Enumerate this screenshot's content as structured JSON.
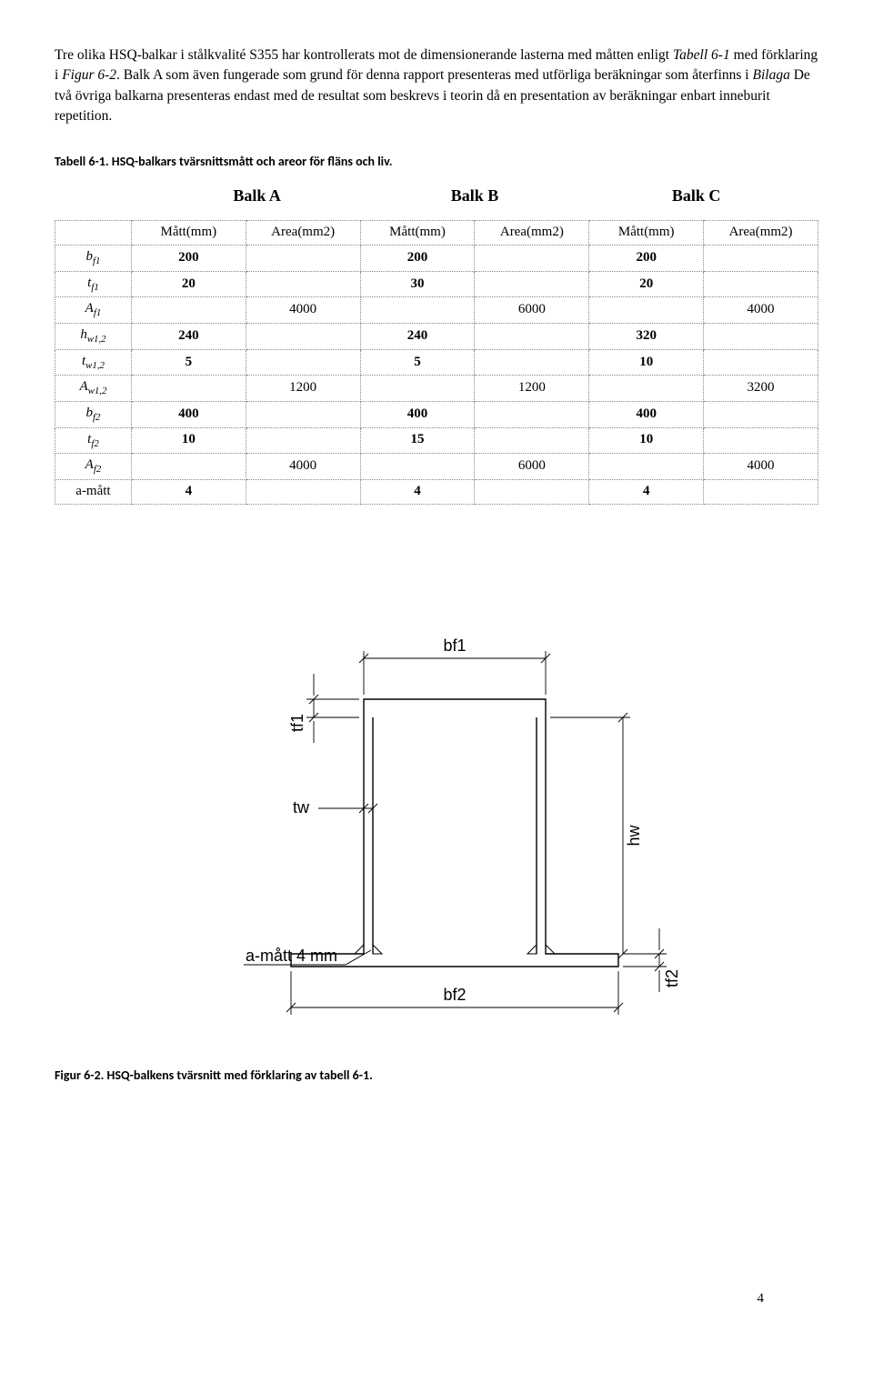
{
  "intro": {
    "p1a": "Tre olika HSQ-balkar i stålkvalité S355 har kontrollerats mot de dimensionerande lasterna med måtten enligt ",
    "p1_em1": "Tabell 6-1",
    "p1b": " med förklaring i ",
    "p1_em2": "Figur 6-2",
    "p1c": ". Balk A som även fungerade som grund för denna rapport presenteras med utförliga beräkningar som återfinns i ",
    "p1_em3": "Bilaga",
    "p1d": " De två övriga balkarna presenteras endast med de resultat som beskrevs i teorin då en presentation av beräkningar enbart inneburit repetition."
  },
  "table_caption": "Tabell 6-1. HSQ-balkars tvärsnittsmått och areor för fläns och liv.",
  "col_titles": {
    "a": "Balk A",
    "b": "Balk B",
    "c": "Balk C"
  },
  "headers": {
    "matt": "Mått(mm)",
    "area": "Area(mm2)"
  },
  "rows": [
    {
      "label_main": "b",
      "label_sub": "f1",
      "a_m": "200",
      "a_a": "",
      "b_m": "200",
      "b_a": "",
      "c_m": "200",
      "c_a": ""
    },
    {
      "label_main": "t",
      "label_sub": "f1",
      "a_m": "20",
      "a_a": "",
      "b_m": "30",
      "b_a": "",
      "c_m": "20",
      "c_a": ""
    },
    {
      "label_main": "A",
      "label_sub": "f1",
      "a_m": "",
      "a_a": "4000",
      "b_m": "",
      "b_a": "6000",
      "c_m": "",
      "c_a": "4000"
    },
    {
      "label_main": "h",
      "label_sub": "w1,2",
      "a_m": "240",
      "a_a": "",
      "b_m": "240",
      "b_a": "",
      "c_m": "320",
      "c_a": ""
    },
    {
      "label_main": "t",
      "label_sub": "w1,2",
      "a_m": "5",
      "a_a": "",
      "b_m": "5",
      "b_a": "",
      "c_m": "10",
      "c_a": ""
    },
    {
      "label_main": "A",
      "label_sub": "w1,2",
      "a_m": "",
      "a_a": "1200",
      "b_m": "",
      "b_a": "1200",
      "c_m": "",
      "c_a": "3200"
    },
    {
      "label_main": "b",
      "label_sub": "f2",
      "a_m": "400",
      "a_a": "",
      "b_m": "400",
      "b_a": "",
      "c_m": "400",
      "c_a": ""
    },
    {
      "label_main": "t",
      "label_sub": "f2",
      "a_m": "10",
      "a_a": "",
      "b_m": "15",
      "b_a": "",
      "c_m": "10",
      "c_a": ""
    },
    {
      "label_main": "A",
      "label_sub": "f2",
      "a_m": "",
      "a_a": "4000",
      "b_m": "",
      "b_a": "6000",
      "c_m": "",
      "c_a": "4000"
    },
    {
      "label_plain": "a-mått",
      "a_m": "4",
      "a_a": "",
      "b_m": "4",
      "b_a": "",
      "c_m": "4",
      "c_a": ""
    }
  ],
  "figure": {
    "labels": {
      "tf1": "tf1",
      "bf1": "bf1",
      "tw": "tw",
      "hw": "hw",
      "tf2": "tf2",
      "bf2": "bf2",
      "amatt": "a-mått 4 mm"
    },
    "stroke": "#000000",
    "stroke_w": 1.4,
    "dim_stroke_w": 0.9
  },
  "fig_caption": "Figur 6-2. HSQ-balkens tvärsnitt med förklaring av tabell 6-1.",
  "page_number": "4"
}
